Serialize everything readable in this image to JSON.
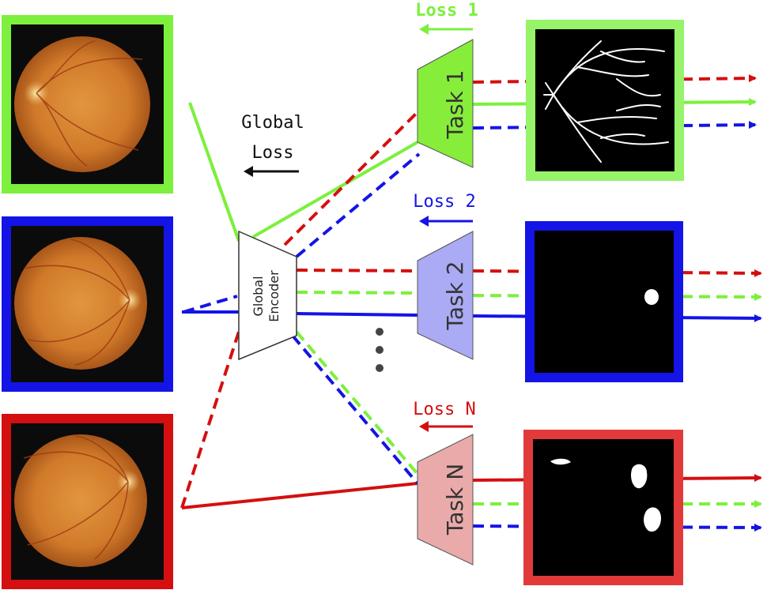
{
  "colors": {
    "green": "#7cf03c",
    "green_border": "#97f36a",
    "blue": "#1414e6",
    "red": "#d40f0f",
    "red_border": "#e23a3a",
    "task1_fill": "#86ee3a",
    "task2_fill": "#aaaaf5",
    "taskN_fill": "#eaaaaa",
    "fundus_bg": "#0b0b0b",
    "fundus_color": "#d9822e"
  },
  "encoder": {
    "label_line1": "Global",
    "label_line2": "Encoder"
  },
  "global_loss": {
    "line1": "Global",
    "line2": "Loss"
  },
  "tasks": [
    {
      "label": "Task 1",
      "loss": "Loss 1",
      "output": "vessel-segmentation-mask"
    },
    {
      "label": "Task 2",
      "loss": "Loss 2",
      "output": "optic-disc-mask"
    },
    {
      "label": "Task N",
      "loss": "Loss N",
      "output": "lesion-mask"
    }
  ],
  "ellipsis": "⋮",
  "inputs": [
    {
      "name": "fundus-image-1"
    },
    {
      "name": "fundus-image-2"
    },
    {
      "name": "fundus-image-N"
    }
  ]
}
